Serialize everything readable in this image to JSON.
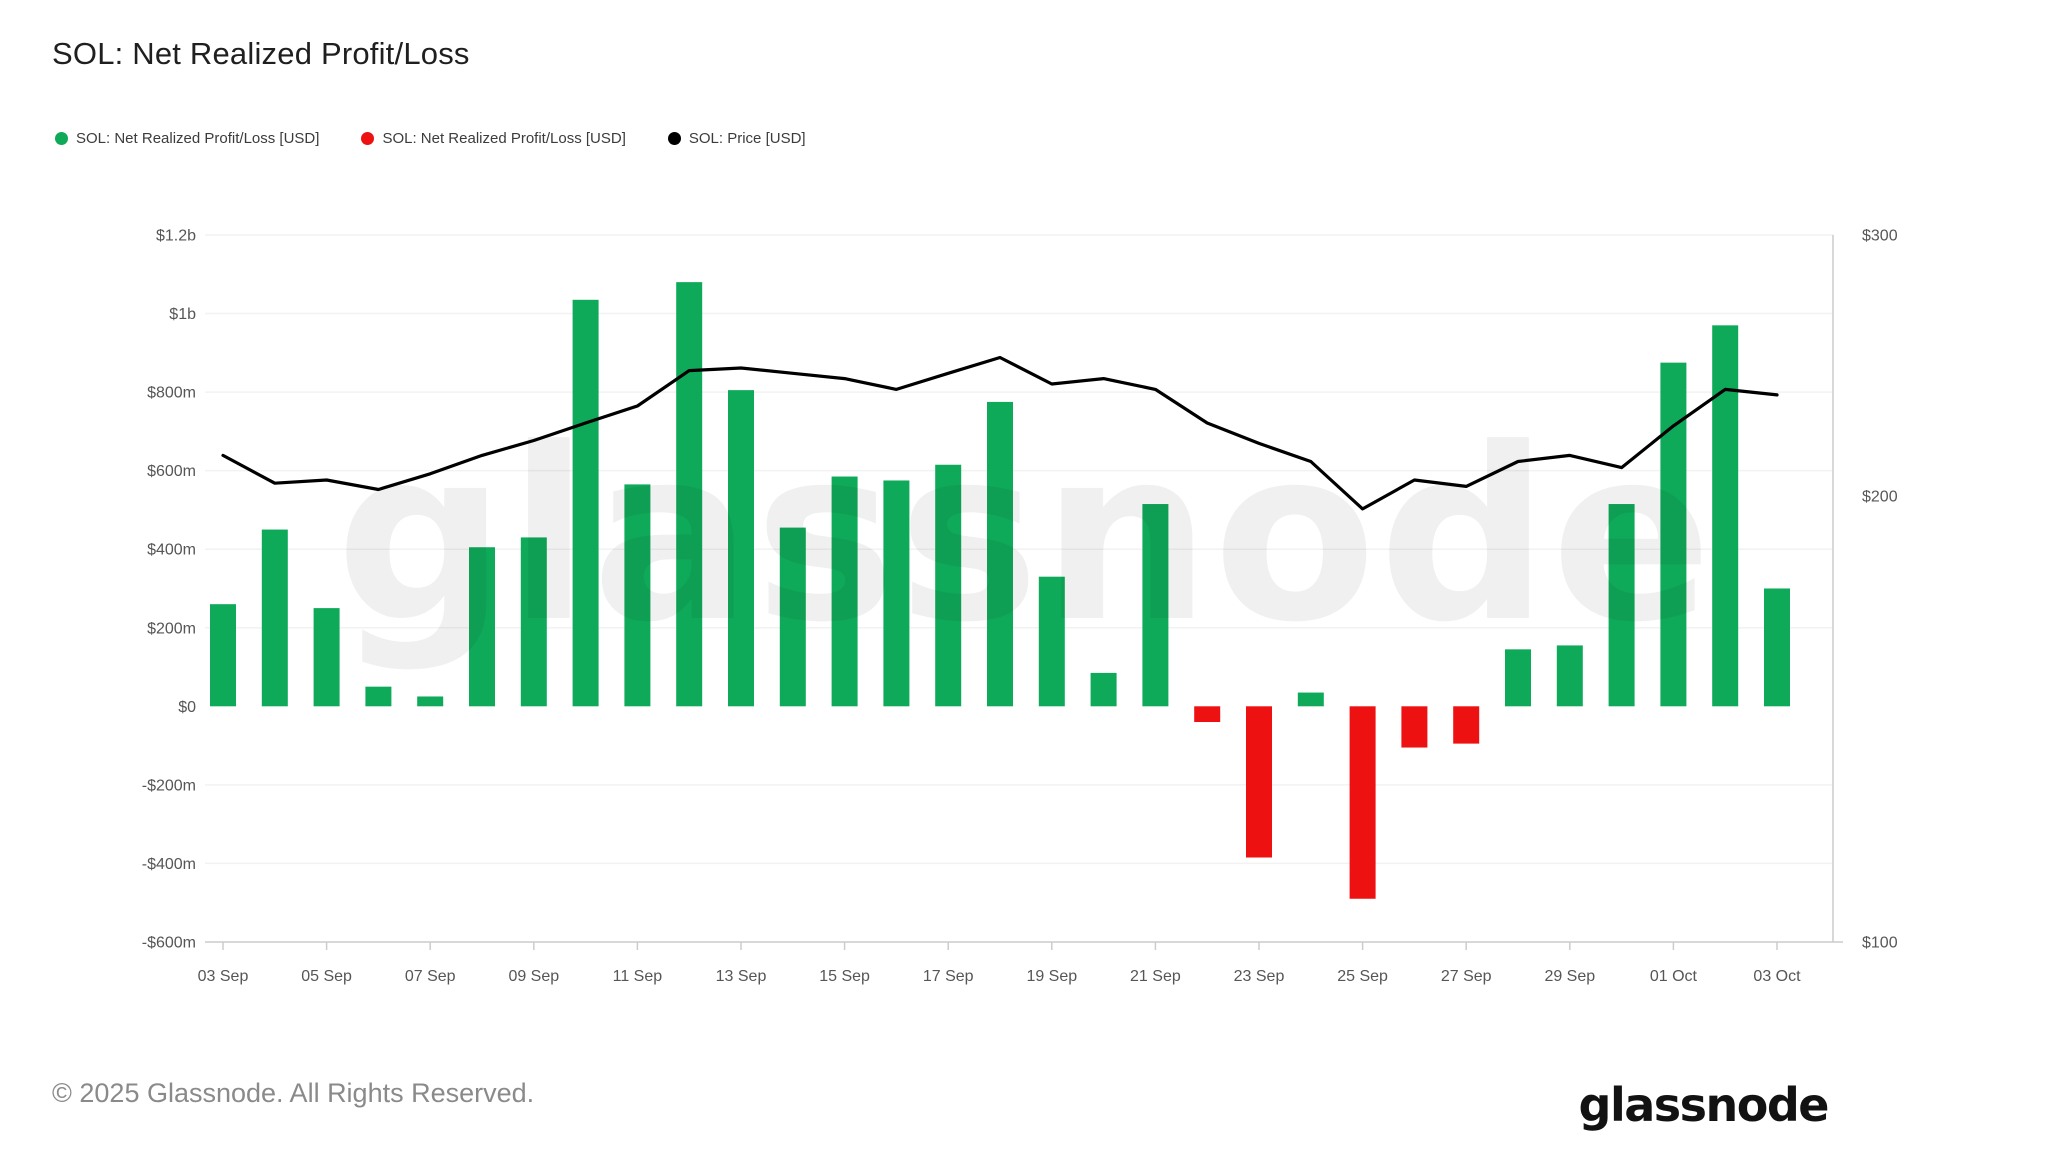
{
  "header": {
    "title": "SOL: Net Realized Profit/Loss"
  },
  "legend": {
    "items": [
      {
        "label": "SOL: Net Realized Profit/Loss [USD]",
        "color": "#0fa95a"
      },
      {
        "label": "SOL: Net Realized Profit/Loss [USD]",
        "color": "#ee1111"
      },
      {
        "label": "SOL: Price [USD]",
        "color": "#000000"
      }
    ]
  },
  "watermark": {
    "text": "glassnode"
  },
  "footer": {
    "copyright": "© 2025 Glassnode. All Rights Reserved.",
    "brand": "glassnode"
  },
  "chart_data": {
    "type": "bar+line",
    "title": "SOL: Net Realized Profit/Loss",
    "categories": [
      "03 Sep",
      "04 Sep",
      "05 Sep",
      "06 Sep",
      "07 Sep",
      "08 Sep",
      "09 Sep",
      "10 Sep",
      "11 Sep",
      "12 Sep",
      "13 Sep",
      "14 Sep",
      "15 Sep",
      "16 Sep",
      "17 Sep",
      "18 Sep",
      "19 Sep",
      "20 Sep",
      "21 Sep",
      "22 Sep",
      "23 Sep",
      "24 Sep",
      "25 Sep",
      "26 Sep",
      "27 Sep",
      "28 Sep",
      "29 Sep",
      "30 Sep",
      "01 Oct",
      "02 Oct",
      "03 Oct"
    ],
    "series": [
      {
        "name": "SOL: Net Realized Profit/Loss [USD]",
        "type": "bar",
        "axis": "left",
        "unit": "USD (millions)",
        "color_positive": "#0fa95a",
        "color_negative": "#ee1111",
        "values": [
          260,
          450,
          250,
          50,
          25,
          405,
          430,
          1035,
          565,
          1080,
          805,
          455,
          585,
          575,
          615,
          775,
          330,
          85,
          515,
          -40,
          -385,
          35,
          -490,
          -105,
          -95,
          145,
          155,
          515,
          875,
          970,
          300
        ]
      },
      {
        "name": "SOL: Price [USD]",
        "type": "line",
        "axis": "right",
        "unit": "USD",
        "color": "#000000",
        "values": [
          213,
          204,
          205,
          202,
          207,
          213,
          218,
          224,
          230,
          243,
          244,
          242,
          240,
          236,
          242,
          248,
          238,
          240,
          236,
          224,
          217,
          211,
          196,
          205,
          203,
          211,
          213,
          209,
          223,
          236,
          234
        ]
      }
    ],
    "left_axis": {
      "tick_labels": [
        "$1.2b",
        "$1b",
        "$800m",
        "$600m",
        "$400m",
        "$200m",
        "$0",
        "-$200m",
        "-$400m",
        "-$600m"
      ],
      "tick_values_millions": [
        1200,
        1000,
        800,
        600,
        400,
        200,
        0,
        -200,
        -400,
        -600
      ],
      "range_millions": [
        -600,
        1200
      ],
      "grid": true
    },
    "right_axis": {
      "scale": "log",
      "tick_labels": [
        "$300",
        "$200",
        "$100"
      ],
      "tick_values": [
        300,
        200,
        100
      ],
      "range": [
        100,
        300
      ]
    },
    "x_axis": {
      "tick_labels": [
        "03 Sep",
        "05 Sep",
        "07 Sep",
        "09 Sep",
        "11 Sep",
        "13 Sep",
        "15 Sep",
        "17 Sep",
        "19 Sep",
        "21 Sep",
        "23 Sep",
        "25 Sep",
        "27 Sep",
        "29 Sep",
        "01 Oct",
        "03 Oct"
      ]
    },
    "legend_position": "top-left"
  }
}
